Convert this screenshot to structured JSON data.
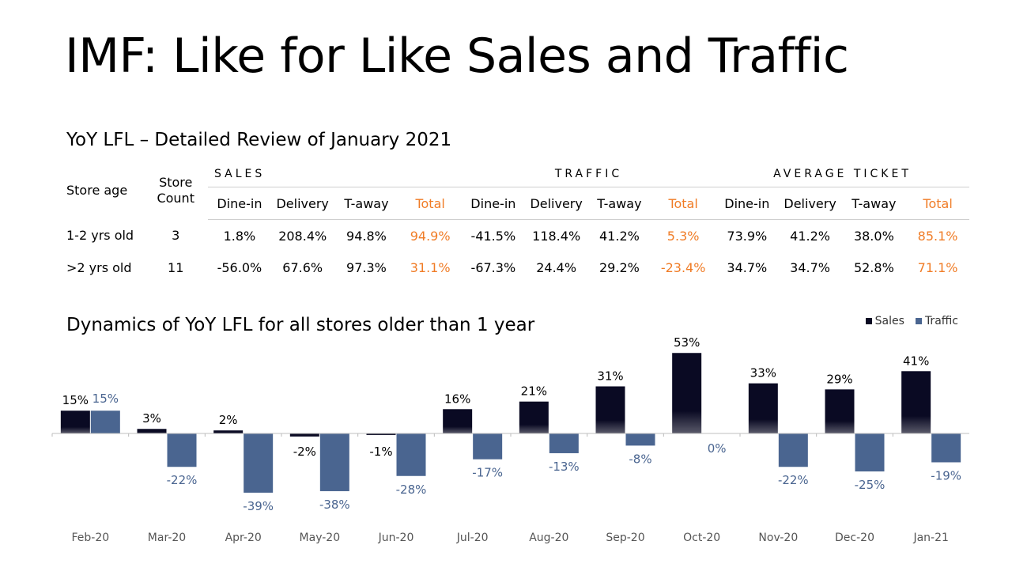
{
  "title": "IMF: Like for Like Sales and Traffic",
  "table_title": "YoY LFL – Detailed Review of January 2021",
  "table": {
    "col_store_age": "Store age",
    "col_store_count": "Store Count",
    "groups": [
      "SALES",
      "TRAFFIC",
      "AVERAGE TICKET"
    ],
    "subheaders": [
      "Dine-in",
      "Delivery",
      "T-away",
      "Total",
      "Dine-in",
      "Delivery",
      "T-away",
      "Total",
      "Dine-in",
      "Delivery",
      "T-away",
      "Total"
    ],
    "rows": [
      {
        "label": "1-2 yrs old",
        "count": "3",
        "values": [
          "1.8%",
          "208.4%",
          "94.8%",
          "94.9%",
          "-41.5%",
          "118.4%",
          "41.2%",
          "5.3%",
          "73.9%",
          "41.2%",
          "38.0%",
          "85.1%"
        ]
      },
      {
        "label": ">2 yrs old",
        "count": "11",
        "values": [
          "-56.0%",
          "67.6%",
          "97.3%",
          "31.1%",
          "-67.3%",
          "24.4%",
          "29.2%",
          "-23.4%",
          "34.7%",
          "34.7%",
          "52.8%",
          "71.1%"
        ]
      }
    ]
  },
  "chart_title": "Dynamics of YoY LFL for all stores older than 1 year",
  "colors": {
    "sales": "#0a0a23",
    "traffic": "#4a6590",
    "accent": "#f07c26"
  },
  "chart_data": {
    "type": "bar",
    "categories": [
      "Feb-20",
      "Mar-20",
      "Apr-20",
      "May-20",
      "Jun-20",
      "Jul-20",
      "Aug-20",
      "Sep-20",
      "Oct-20",
      "Nov-20",
      "Dec-20",
      "Jan-21"
    ],
    "series": [
      {
        "name": "Sales",
        "values": [
          15,
          3,
          2,
          -2,
          -1,
          16,
          21,
          31,
          53,
          33,
          29,
          41
        ]
      },
      {
        "name": "Traffic",
        "values": [
          15,
          -22,
          -39,
          -38,
          -28,
          -17,
          -13,
          -8,
          0,
          -22,
          -25,
          -19
        ]
      }
    ],
    "value_suffix": "%",
    "legend": "top-right"
  }
}
